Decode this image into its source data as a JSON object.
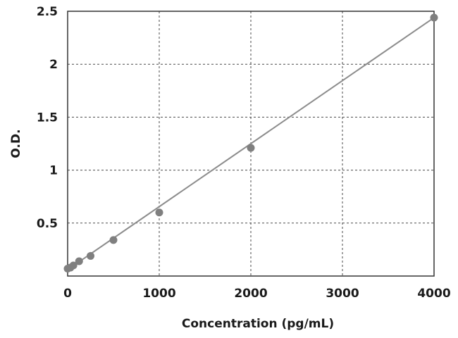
{
  "chart_data": {
    "type": "scatter",
    "xlabel": "Concentration (pg/mL)",
    "ylabel": "O.D.",
    "xlim": [
      0,
      4000
    ],
    "ylim": [
      0,
      2.5
    ],
    "x_ticks": [
      "0",
      "1000",
      "2000",
      "3000",
      "4000"
    ],
    "y_ticks": [
      "0.5",
      "1",
      "1.5",
      "2",
      "2.5"
    ],
    "grid": true,
    "legend": "none",
    "series": [
      {
        "x": [
          0,
          31.25,
          62.5,
          125,
          250,
          500,
          1000,
          2000,
          4000
        ],
        "y": [
          0.07,
          0.08,
          0.1,
          0.14,
          0.19,
          0.34,
          0.6,
          1.21,
          2.44
        ]
      }
    ],
    "fit_line": {
      "x": [
        0,
        4000
      ],
      "y": [
        0.06,
        2.44
      ]
    },
    "colors": {
      "line": "#8c8c8c",
      "marker": "#7f7f7f",
      "grid": "#4a4a4a",
      "frame": "#333333"
    }
  }
}
